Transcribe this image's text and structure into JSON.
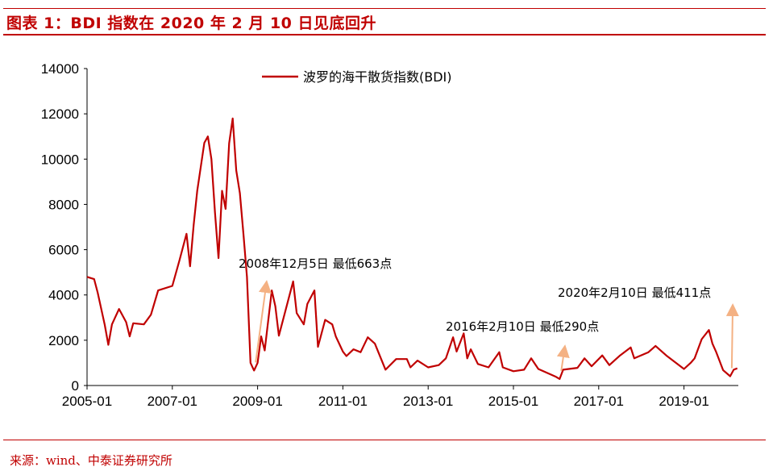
{
  "header": {
    "title": "图表 1：BDI 指数在 2020 年 2 月 10 日见底回升"
  },
  "footer": {
    "source": "来源：wind、中泰证券研究所"
  },
  "colors": {
    "accent": "#c00000",
    "series": "#c00000",
    "arrow": "#f4b183"
  },
  "chart_data": {
    "type": "line",
    "title": "",
    "xlabel": "",
    "ylabel": "",
    "ylim": [
      0,
      14000
    ],
    "yticks": [
      0,
      2000,
      4000,
      6000,
      8000,
      10000,
      12000,
      14000
    ],
    "xticks": [
      "2005-01",
      "2007-01",
      "2009-01",
      "2011-01",
      "2013-01",
      "2015-01",
      "2017-01",
      "2019-01"
    ],
    "grid": false,
    "legend": {
      "placement": "top-center",
      "entries": [
        "波罗的海干散货指数(BDI)"
      ]
    },
    "series": [
      {
        "name": "波罗的海干散货指数(BDI)",
        "points": [
          [
            "2005-01",
            4800
          ],
          [
            "2005-03",
            4700
          ],
          [
            "2005-04",
            4100
          ],
          [
            "2005-06",
            2670
          ],
          [
            "2005-07",
            1800
          ],
          [
            "2005-08",
            2700
          ],
          [
            "2005-10",
            3380
          ],
          [
            "2005-12",
            2800
          ],
          [
            "2006-01",
            2170
          ],
          [
            "2006-02",
            2750
          ],
          [
            "2006-05",
            2700
          ],
          [
            "2006-07",
            3130
          ],
          [
            "2006-09",
            4200
          ],
          [
            "2007-01",
            4400
          ],
          [
            "2007-03",
            5520
          ],
          [
            "2007-05",
            6700
          ],
          [
            "2007-06",
            5270
          ],
          [
            "2007-07",
            7100
          ],
          [
            "2007-08",
            8600
          ],
          [
            "2007-10",
            10720
          ],
          [
            "2007-11",
            11000
          ],
          [
            "2007-12",
            10000
          ],
          [
            "2008-01",
            7650
          ],
          [
            "2008-02",
            5630
          ],
          [
            "2008-03",
            8600
          ],
          [
            "2008-04",
            7800
          ],
          [
            "2008-05",
            10700
          ],
          [
            "2008-06",
            11800
          ],
          [
            "2008-07",
            9500
          ],
          [
            "2008-08",
            8500
          ],
          [
            "2008-09",
            6700
          ],
          [
            "2008-10",
            4800
          ],
          [
            "2008-11",
            1000
          ],
          [
            "2008-12",
            663
          ],
          [
            "2009-01",
            1000
          ],
          [
            "2009-02",
            2170
          ],
          [
            "2009-03",
            1550
          ],
          [
            "2009-05",
            4200
          ],
          [
            "2009-06",
            3500
          ],
          [
            "2009-07",
            2200
          ],
          [
            "2009-11",
            4600
          ],
          [
            "2009-12",
            3200
          ],
          [
            "2010-02",
            2700
          ],
          [
            "2010-03",
            3600
          ],
          [
            "2010-05",
            4200
          ],
          [
            "2010-06",
            1710
          ],
          [
            "2010-08",
            2900
          ],
          [
            "2010-10",
            2700
          ],
          [
            "2010-11",
            2170
          ],
          [
            "2011-01",
            1500
          ],
          [
            "2011-02",
            1300
          ],
          [
            "2011-04",
            1600
          ],
          [
            "2011-06",
            1470
          ],
          [
            "2011-08",
            2130
          ],
          [
            "2011-10",
            1850
          ],
          [
            "2012-01",
            700
          ],
          [
            "2012-04",
            1170
          ],
          [
            "2012-07",
            1170
          ],
          [
            "2012-08",
            800
          ],
          [
            "2012-10",
            1100
          ],
          [
            "2013-01",
            800
          ],
          [
            "2013-04",
            900
          ],
          [
            "2013-06",
            1200
          ],
          [
            "2013-08",
            2130
          ],
          [
            "2013-09",
            1500
          ],
          [
            "2013-11",
            2300
          ],
          [
            "2013-12",
            1200
          ],
          [
            "2014-01",
            1600
          ],
          [
            "2014-03",
            950
          ],
          [
            "2014-06",
            800
          ],
          [
            "2014-09",
            1470
          ],
          [
            "2014-10",
            800
          ],
          [
            "2015-01",
            630
          ],
          [
            "2015-04",
            700
          ],
          [
            "2015-06",
            1200
          ],
          [
            "2015-08",
            730
          ],
          [
            "2016-01",
            380
          ],
          [
            "2016-02",
            290
          ],
          [
            "2016-03",
            700
          ],
          [
            "2016-07",
            780
          ],
          [
            "2016-09",
            1200
          ],
          [
            "2016-11",
            850
          ],
          [
            "2017-02",
            1330
          ],
          [
            "2017-04",
            900
          ],
          [
            "2017-07",
            1330
          ],
          [
            "2017-10",
            1680
          ],
          [
            "2017-11",
            1200
          ],
          [
            "2018-03",
            1470
          ],
          [
            "2018-05",
            1750
          ],
          [
            "2018-08",
            1330
          ],
          [
            "2019-01",
            730
          ],
          [
            "2019-03",
            1020
          ],
          [
            "2019-04",
            1200
          ],
          [
            "2019-06",
            2050
          ],
          [
            "2019-08",
            2450
          ],
          [
            "2019-09",
            1850
          ],
          [
            "2019-10",
            1500
          ],
          [
            "2019-12",
            680
          ],
          [
            "2020-02",
            411
          ],
          [
            "2020-03",
            700
          ],
          [
            "2020-04",
            760
          ]
        ]
      }
    ],
    "annotations": [
      {
        "text": "2008年12月5日 最低663点",
        "date": "2008-12",
        "value": 663
      },
      {
        "text": "2016年2月10日 最低290点",
        "date": "2016-02",
        "value": 290
      },
      {
        "text": "2020年2月10日 最低411点",
        "date": "2020-02",
        "value": 411
      }
    ]
  }
}
